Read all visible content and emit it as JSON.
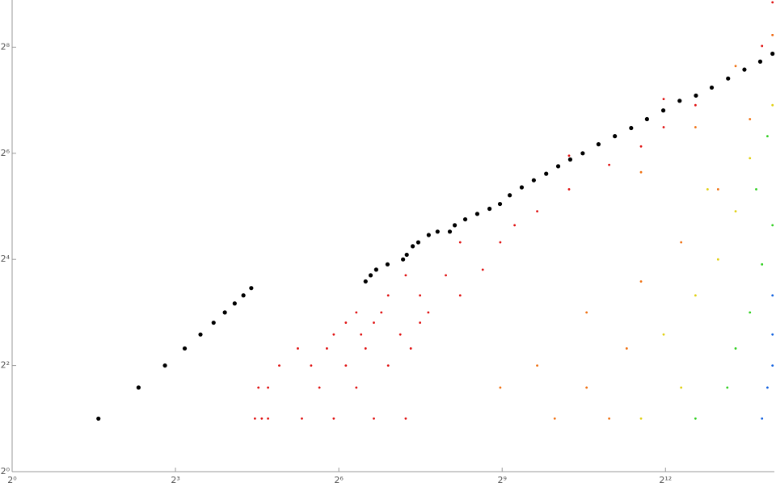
{
  "chart_data": {
    "type": "scatter",
    "xlog": true,
    "ylog": true,
    "xlim": [
      1,
      16384
    ],
    "ylim": [
      1,
      474
    ],
    "xticks": [
      {
        "value": 1,
        "label": "2⁰"
      },
      {
        "value": 8,
        "label": "2³"
      },
      {
        "value": 64,
        "label": "2⁶"
      },
      {
        "value": 512,
        "label": "2⁹"
      },
      {
        "value": 4096,
        "label": "2¹²"
      }
    ],
    "yticks": [
      {
        "value": 1,
        "label": "2⁰"
      },
      {
        "value": 4,
        "label": "2²"
      },
      {
        "value": 16,
        "label": "2⁴"
      },
      {
        "value": 64,
        "label": "2⁶"
      },
      {
        "value": 256,
        "label": "2⁸"
      }
    ],
    "series": [
      {
        "color": "#e01010",
        "x": [
          22,
          24,
          26,
          40,
          60,
          100,
          150,
          23,
          26,
          50,
          80,
          30,
          45,
          70,
          120,
          38,
          55,
          90,
          160,
          60,
          85,
          140,
          70,
          100,
          180,
          80,
          110,
          200,
          120,
          180,
          300,
          150,
          250,
          400,
          300,
          500,
          600,
          800,
          1200,
          2000,
          3000,
          4000,
          6000,
          9000,
          14000,
          16000,
          1200,
          4000,
          16000
        ],
        "y": [
          2,
          2,
          2,
          2,
          2,
          2,
          2,
          3,
          3,
          3,
          3,
          4,
          4,
          4,
          4,
          5,
          5,
          5,
          5,
          6,
          6,
          6,
          7,
          7,
          7,
          8,
          8,
          8,
          10,
          10,
          10,
          13,
          13,
          14,
          20,
          20,
          25,
          30,
          40,
          55,
          70,
          90,
          120,
          170,
          260,
          300,
          62,
          130,
          460
        ]
      },
      {
        "color": "#f07010",
        "x": [
          1000,
          2000,
          500,
          1500,
          800,
          2500,
          1500,
          3000,
          5000,
          8000,
          12000,
          3000,
          6000,
          16000,
          10000
        ],
        "y": [
          2,
          2,
          3,
          3,
          4,
          5,
          8,
          12,
          20,
          40,
          100,
          50,
          90,
          300,
          200
        ]
      },
      {
        "color": "#e0d010",
        "x": [
          3000,
          5000,
          4000,
          6000,
          8000,
          10000,
          12000,
          16000,
          7000
        ],
        "y": [
          2,
          3,
          6,
          10,
          16,
          30,
          60,
          120,
          40
        ]
      },
      {
        "color": "#30d020",
        "x": [
          6000,
          9000,
          10000,
          12000,
          14000,
          16000,
          13000,
          15000
        ],
        "y": [
          2,
          3,
          5,
          8,
          15,
          25,
          40,
          80
        ]
      },
      {
        "color": "#1060e0",
        "x": [
          14000,
          15000,
          16000,
          16000,
          16000
        ],
        "y": [
          2,
          3,
          4,
          6,
          10
        ]
      },
      {
        "color": "#000000",
        "x": [
          3,
          5,
          7,
          9,
          11,
          13,
          15,
          17,
          19,
          21,
          90,
          96,
          103,
          119,
          145,
          152,
          164,
          176,
          201,
          225,
          263,
          280,
          320,
          373,
          436,
          498,
          564,
          657,
          766,
          897,
          1045,
          1218,
          1428,
          1746,
          2150,
          2646,
          3236,
          3983,
          4904,
          6036,
          7380,
          9088,
          11190,
          13680,
          16000
        ],
        "y": [
          2,
          3,
          4,
          5,
          6,
          7,
          8,
          9,
          10,
          11,
          12,
          13,
          14,
          15,
          16,
          17,
          19,
          20,
          22,
          23,
          23,
          25,
          27,
          29,
          31,
          33,
          37,
          41,
          45,
          49,
          54,
          59,
          64,
          72,
          80,
          89,
          100,
          112,
          127,
          136,
          151,
          170,
          191,
          212,
          235
        ]
      }
    ]
  }
}
